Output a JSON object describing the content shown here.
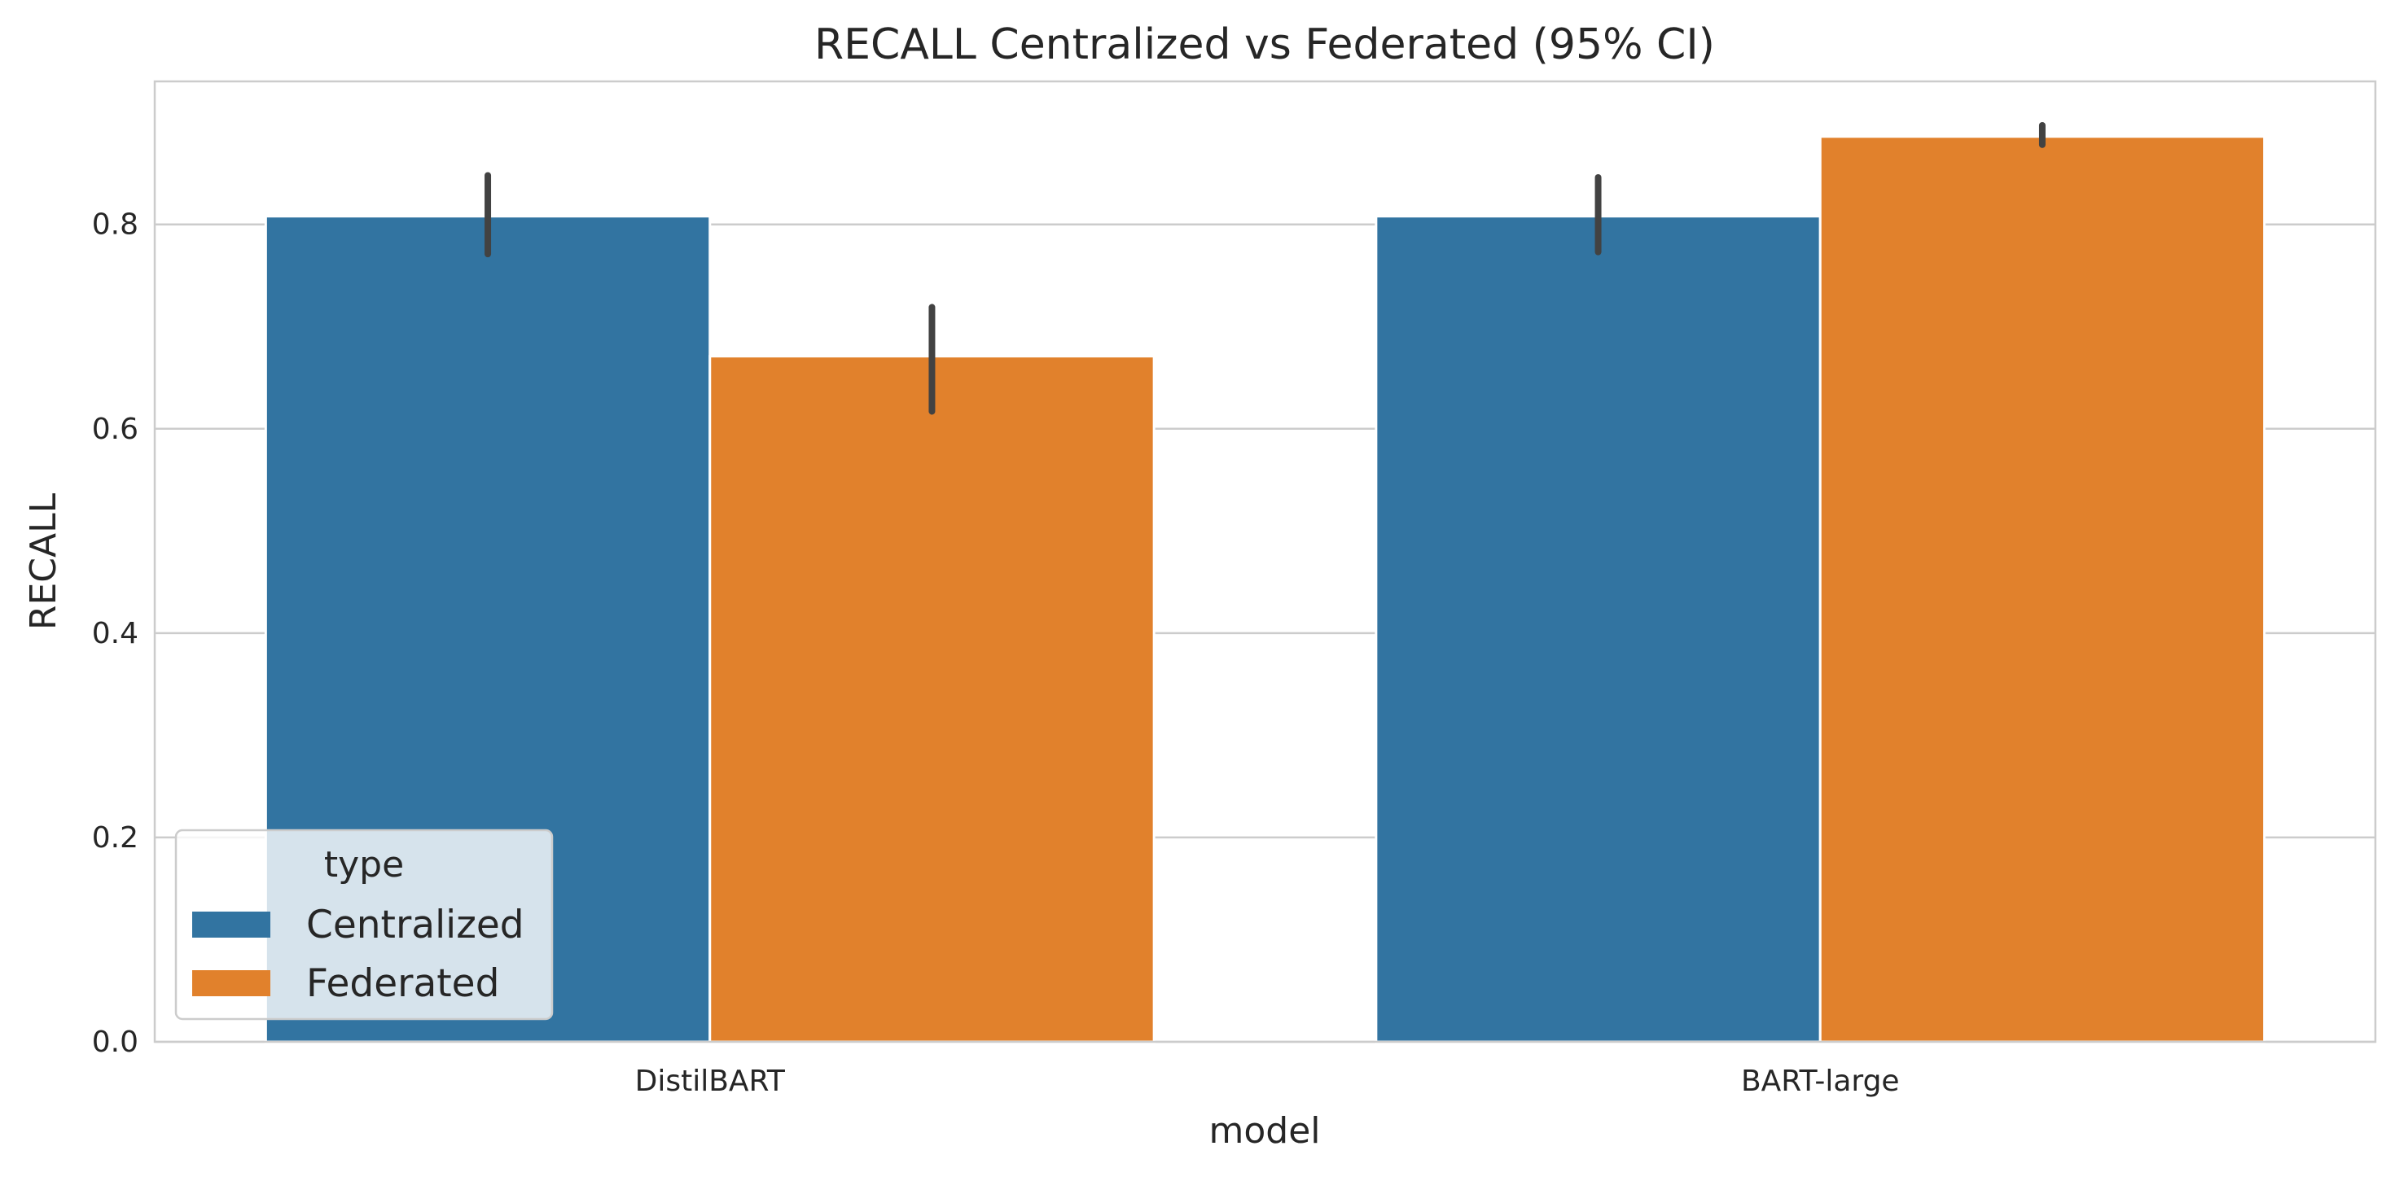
{
  "chart_data": {
    "type": "bar",
    "title": "RECALL Centralized vs Federated (95% CI)",
    "xlabel": "model",
    "ylabel": "RECALL",
    "categories": [
      "DistilBART",
      "BART-large"
    ],
    "series": [
      {
        "name": "Centralized",
        "color": "#3274a1",
        "values": [
          0.808,
          0.808
        ],
        "ci_low": [
          0.771,
          0.773
        ],
        "ci_high": [
          0.848,
          0.846
        ]
      },
      {
        "name": "Federated",
        "color": "#e1812c",
        "values": [
          0.671,
          0.886
        ],
        "ci_low": [
          0.617,
          0.878
        ],
        "ci_high": [
          0.719,
          0.897
        ]
      }
    ],
    "ylim": [
      0,
      0.94
    ],
    "yticks": [
      "0.0",
      "0.2",
      "0.4",
      "0.6",
      "0.8"
    ],
    "grid": true,
    "legend": {
      "title": "type",
      "placement": "lower-left"
    },
    "colors": {
      "grid": "#cccccc",
      "spine": "#cccccc",
      "errorbar": "#424242"
    }
  }
}
